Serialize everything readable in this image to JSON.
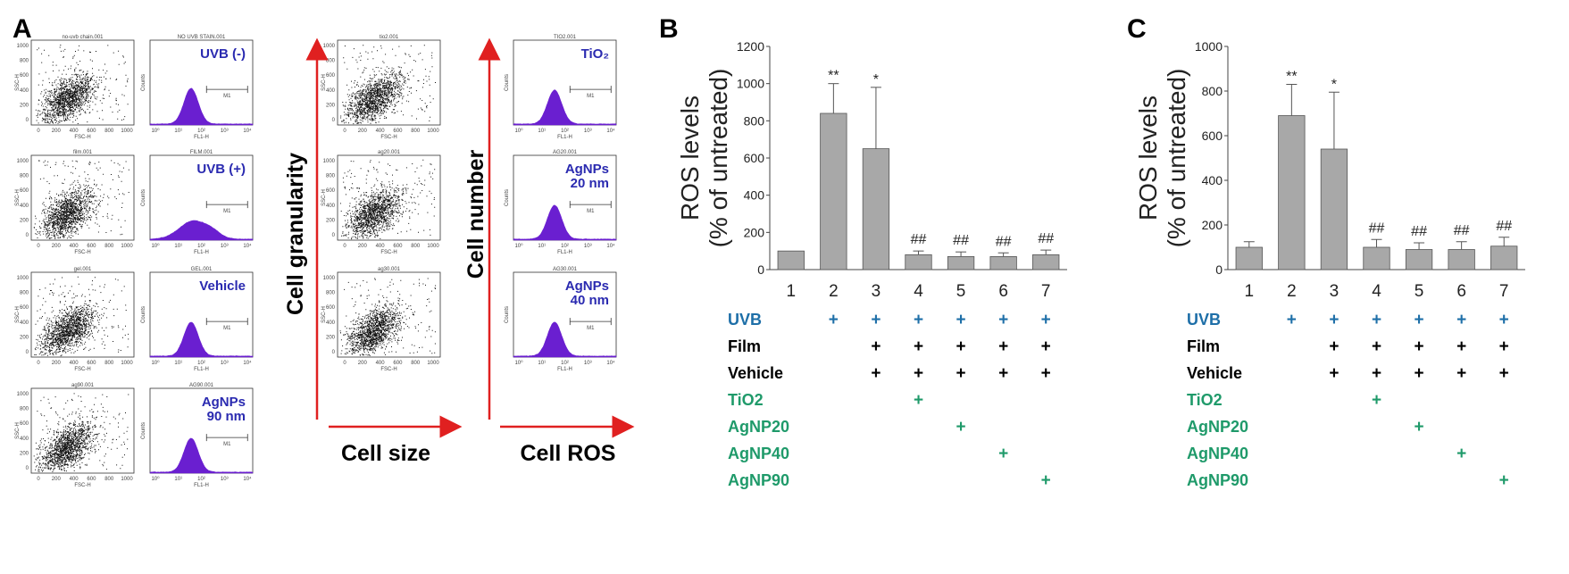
{
  "panel_a": {
    "letter": "A",
    "scatter_titles": [
      "no-uvb chain.001",
      "film.001",
      "gel.001",
      "ag90.001",
      "tio2.001",
      "ag20.001",
      "ag30.001"
    ],
    "histo_titles": [
      "NO UVB STAIN.001",
      "FILM.001",
      "GEL.001",
      "AG90.001",
      "TIO2.001",
      "AG20.001",
      "AG30.001"
    ],
    "histo_labels": [
      [
        "UVB (-)"
      ],
      [
        "UVB (+)"
      ],
      [
        "Vehicle"
      ],
      [
        "AgNPs",
        "90 nm"
      ],
      [
        "TiO₂"
      ],
      [
        "AgNPs",
        "20 nm"
      ],
      [
        "AgNPs",
        "40 nm"
      ]
    ],
    "scatter_xaxis": "FSC-H",
    "scatter_yaxis": "SSC-H",
    "histo_xaxis": "FL1-H",
    "histo_yaxis": "Counts",
    "gate_label": "M1",
    "scatter_xticks": [
      "0",
      "200",
      "400",
      "600",
      "800",
      "1000"
    ],
    "scatter_yticks": [
      "0",
      "200",
      "400",
      "600",
      "800",
      "1000"
    ],
    "histo_xticks": [
      "10⁰",
      "10¹",
      "10²",
      "10³",
      "10⁴"
    ],
    "cell_granularity": "Cell granularity",
    "cell_size": "Cell size",
    "cell_number": "Cell number",
    "cell_ros": "Cell ROS"
  },
  "chart_data": [
    {
      "type": "bar",
      "panel": "B",
      "categories": [
        "1",
        "2",
        "3",
        "4",
        "5",
        "6",
        "7"
      ],
      "values": [
        100,
        840,
        650,
        80,
        70,
        70,
        80
      ],
      "errors": [
        0,
        160,
        330,
        20,
        25,
        20,
        25
      ],
      "significance": [
        "",
        "**",
        "*",
        "##",
        "##",
        "##",
        "##"
      ],
      "ylabel_line1": "ROS levels",
      "ylabel_line2": "(% of untreated)",
      "ylim": [
        0,
        1200
      ],
      "yticks": [
        "0",
        "200",
        "400",
        "600",
        "800",
        "1000",
        "1200"
      ],
      "color": "#a8a8a8"
    },
    {
      "type": "bar",
      "panel": "C",
      "categories": [
        "1",
        "2",
        "3",
        "4",
        "5",
        "6",
        "7"
      ],
      "values": [
        100,
        690,
        540,
        100,
        90,
        90,
        105
      ],
      "errors": [
        25,
        140,
        255,
        35,
        30,
        35,
        40
      ],
      "significance": [
        "",
        "**",
        "*",
        "##",
        "##",
        "##",
        "##"
      ],
      "ylabel_line1": "ROS levels",
      "ylabel_line2": "(% of untreated)",
      "ylim": [
        0,
        1000
      ],
      "yticks": [
        "0",
        "200",
        "400",
        "600",
        "800",
        "1000"
      ],
      "color": "#a8a8a8"
    }
  ],
  "treatment_table": {
    "rows": [
      {
        "label": "UVB",
        "color": "#1e6fa8",
        "marks": [
          "",
          "+",
          "+",
          "+",
          "+",
          "+",
          "+"
        ]
      },
      {
        "label": "Film",
        "color": "#000000",
        "marks": [
          "",
          "",
          "+",
          "+",
          "+",
          "+",
          "+"
        ]
      },
      {
        "label": "Vehicle",
        "color": "#000000",
        "marks": [
          "",
          "",
          "+",
          "+",
          "+",
          "+",
          "+"
        ]
      },
      {
        "label": "TiO2",
        "color": "#1f9a6a",
        "marks": [
          "",
          "",
          "",
          "+",
          "",
          "",
          ""
        ]
      },
      {
        "label": "AgNP20",
        "color": "#1f9a6a",
        "marks": [
          "",
          "",
          "",
          "",
          "+",
          "",
          ""
        ]
      },
      {
        "label": "AgNP40",
        "color": "#1f9a6a",
        "marks": [
          "",
          "",
          "",
          "",
          "",
          "+",
          ""
        ]
      },
      {
        "label": "AgNP90",
        "color": "#1f9a6a",
        "marks": [
          "",
          "",
          "",
          "",
          "",
          "",
          "+"
        ]
      }
    ]
  },
  "colors": {
    "histogram": "#6a1fd0",
    "arrow": "#e02020",
    "label_blue": "#2a2ab0"
  }
}
